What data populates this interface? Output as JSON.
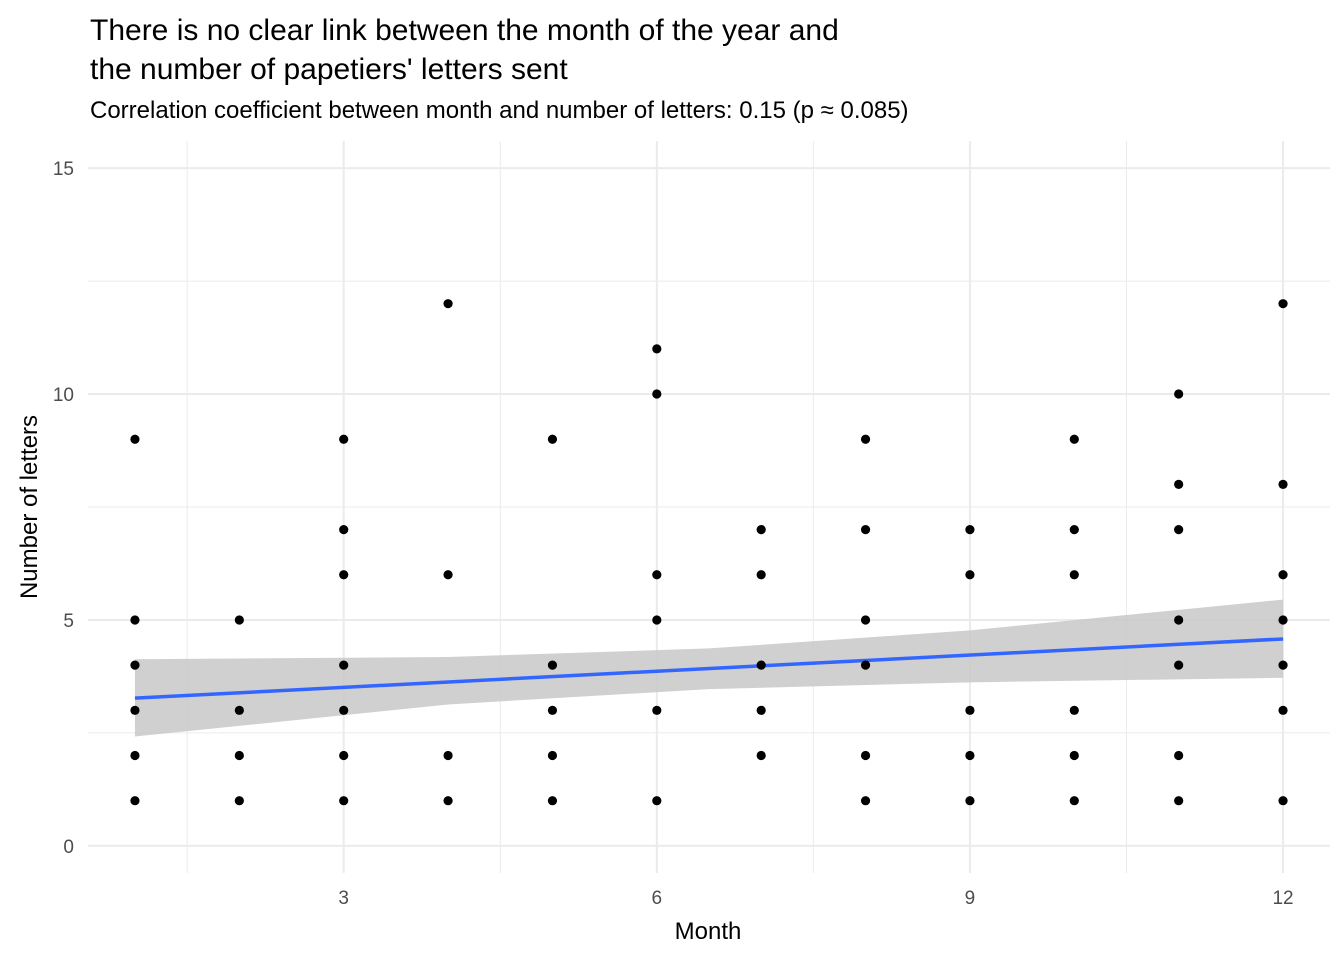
{
  "chart_data": {
    "type": "scatter",
    "title": "There is no clear link between the month of the year and\nthe number of papetiers' letters sent",
    "subtitle": "Correlation coefficient between month and number of letters: 0.15 (p ≈ 0.085)",
    "xlabel": "Month",
    "ylabel": "Number of letters",
    "xlim": [
      0.55,
      12.45
    ],
    "ylim": [
      -0.6,
      15.6
    ],
    "x_ticks": [
      3,
      6,
      9,
      12
    ],
    "x_tick_labels": [
      "3",
      "6",
      "9",
      "12"
    ],
    "y_ticks": [
      0,
      5,
      10,
      15
    ],
    "y_tick_labels": [
      "0",
      "5",
      "10",
      "15"
    ],
    "grid": true,
    "legend": "none",
    "colors": {
      "points": "#000000",
      "trend_line": "#3366ff",
      "confidence_band": "#c8c8c8",
      "grid": "#ebebeb"
    },
    "series": [
      {
        "points": [
          {
            "x": 1,
            "y": 1
          },
          {
            "x": 1,
            "y": 2
          },
          {
            "x": 1,
            "y": 3
          },
          {
            "x": 1,
            "y": 4
          },
          {
            "x": 1,
            "y": 5
          },
          {
            "x": 1,
            "y": 9
          },
          {
            "x": 2,
            "y": 1
          },
          {
            "x": 2,
            "y": 2
          },
          {
            "x": 2,
            "y": 3
          },
          {
            "x": 2,
            "y": 5
          },
          {
            "x": 3,
            "y": 1
          },
          {
            "x": 3,
            "y": 2
          },
          {
            "x": 3,
            "y": 3
          },
          {
            "x": 3,
            "y": 4
          },
          {
            "x": 3,
            "y": 6
          },
          {
            "x": 3,
            "y": 7
          },
          {
            "x": 3,
            "y": 9
          },
          {
            "x": 4,
            "y": 1
          },
          {
            "x": 4,
            "y": 2
          },
          {
            "x": 4,
            "y": 6
          },
          {
            "x": 4,
            "y": 12
          },
          {
            "x": 5,
            "y": 1
          },
          {
            "x": 5,
            "y": 2
          },
          {
            "x": 5,
            "y": 3
          },
          {
            "x": 5,
            "y": 4
          },
          {
            "x": 5,
            "y": 9
          },
          {
            "x": 6,
            "y": 1
          },
          {
            "x": 6,
            "y": 3
          },
          {
            "x": 6,
            "y": 5
          },
          {
            "x": 6,
            "y": 6
          },
          {
            "x": 6,
            "y": 10
          },
          {
            "x": 6,
            "y": 11
          },
          {
            "x": 7,
            "y": 2
          },
          {
            "x": 7,
            "y": 3
          },
          {
            "x": 7,
            "y": 4
          },
          {
            "x": 7,
            "y": 6
          },
          {
            "x": 7,
            "y": 7
          },
          {
            "x": 8,
            "y": 1
          },
          {
            "x": 8,
            "y": 2
          },
          {
            "x": 8,
            "y": 4
          },
          {
            "x": 8,
            "y": 5
          },
          {
            "x": 8,
            "y": 7
          },
          {
            "x": 8,
            "y": 9
          },
          {
            "x": 9,
            "y": 1
          },
          {
            "x": 9,
            "y": 2
          },
          {
            "x": 9,
            "y": 3
          },
          {
            "x": 9,
            "y": 6
          },
          {
            "x": 9,
            "y": 7
          },
          {
            "x": 10,
            "y": 1
          },
          {
            "x": 10,
            "y": 2
          },
          {
            "x": 10,
            "y": 3
          },
          {
            "x": 10,
            "y": 6
          },
          {
            "x": 10,
            "y": 7
          },
          {
            "x": 10,
            "y": 9
          },
          {
            "x": 11,
            "y": 1
          },
          {
            "x": 11,
            "y": 2
          },
          {
            "x": 11,
            "y": 4
          },
          {
            "x": 11,
            "y": 5
          },
          {
            "x": 11,
            "y": 7
          },
          {
            "x": 11,
            "y": 8
          },
          {
            "x": 11,
            "y": 10
          },
          {
            "x": 12,
            "y": 1
          },
          {
            "x": 12,
            "y": 3
          },
          {
            "x": 12,
            "y": 4
          },
          {
            "x": 12,
            "y": 5
          },
          {
            "x": 12,
            "y": 6
          },
          {
            "x": 12,
            "y": 8
          },
          {
            "x": 12,
            "y": 12
          }
        ]
      }
    ],
    "trend_line": {
      "method": "linear",
      "points": [
        {
          "x": 1,
          "y": 3.27
        },
        {
          "x": 12,
          "y": 4.58
        }
      ],
      "confidence_band": [
        {
          "x": 1,
          "lower": 2.42,
          "upper": 4.13
        },
        {
          "x": 4,
          "lower": 3.13,
          "upper": 4.18
        },
        {
          "x": 6.5,
          "lower": 3.47,
          "upper": 4.37
        },
        {
          "x": 9,
          "lower": 3.62,
          "upper": 4.77
        },
        {
          "x": 12,
          "lower": 3.72,
          "upper": 5.45
        }
      ]
    }
  }
}
